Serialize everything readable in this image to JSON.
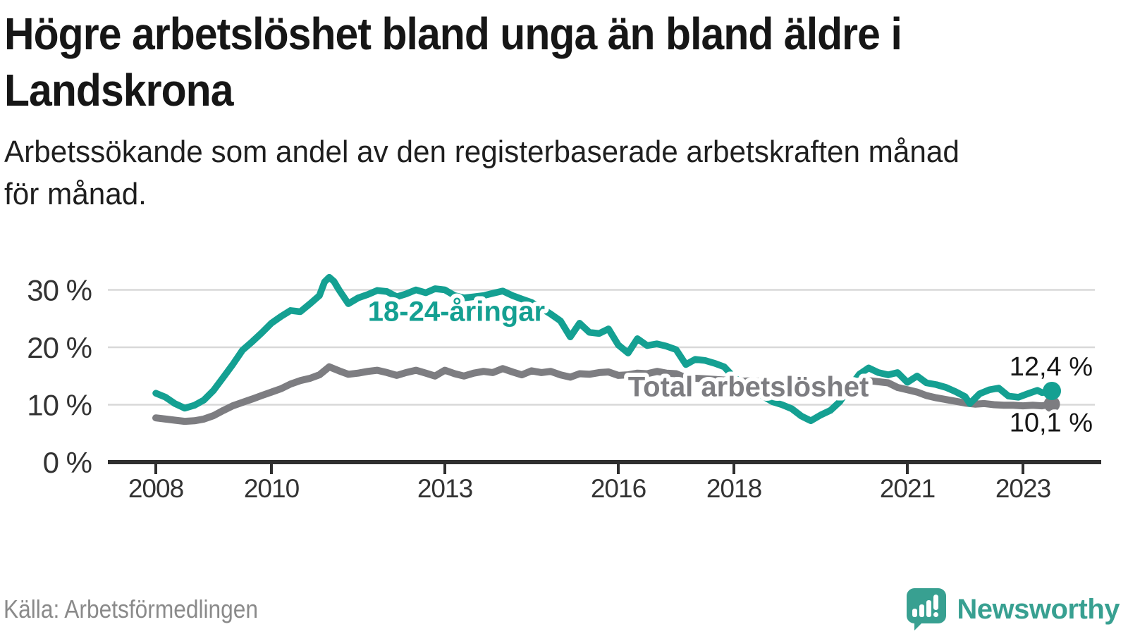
{
  "header": {
    "title_lines": [
      "Högre arbetslöshet bland unga än bland äldre i",
      "Landskrona"
    ],
    "subtitle_lines": [
      "Arbetssökande som andel av den registerbaserade arbetskraften månad",
      "för månad."
    ]
  },
  "footer": {
    "source": "Källa: Arbetsförmedlingen",
    "brand_name": "Newsworthy"
  },
  "colors": {
    "youth_line": "#14a092",
    "total_line": "#7d7d81",
    "grid": "#d8d8d8",
    "axis": "#2f2f2f",
    "value_label": "#161616",
    "brand_teal": "#38a091"
  },
  "chart_data": {
    "type": "line",
    "title": "Högre arbetslöshet bland unga än bland äldre i Landskrona",
    "subtitle": "Arbetssökande som andel av den registerbaserade arbetskraften månad för månad.",
    "source": "Källa: Arbetsförmedlingen",
    "grid": "horizontal",
    "ylim": [
      0,
      33.5
    ],
    "xlim": [
      2007.2,
      2024.2
    ],
    "y_ticks": [
      {
        "value": 0,
        "label": "0 %"
      },
      {
        "value": 10,
        "label": "10 %"
      },
      {
        "value": 20,
        "label": "20 %"
      },
      {
        "value": 30,
        "label": "30 %"
      }
    ],
    "x_ticks": [
      {
        "value": 2008,
        "label": "2008"
      },
      {
        "value": 2010,
        "label": "2010"
      },
      {
        "value": 2013,
        "label": "2013"
      },
      {
        "value": 2016,
        "label": "2016"
      },
      {
        "value": 2018,
        "label": "2018"
      },
      {
        "value": 2021,
        "label": "2021"
      },
      {
        "value": 2023,
        "label": "2023"
      }
    ],
    "series": [
      {
        "name": "Total arbetslöshet",
        "color": "#7d7d81",
        "line_width": 10,
        "end_label": "10,1 %",
        "end_value": 10.1,
        "end_dot_radius": 11.5,
        "label_anchor": {
          "x": 2018.25,
          "y": 13.2
        },
        "end_label_offset": {
          "dx": 58,
          "dy": 39
        },
        "x": [
          2008.0,
          2008.17,
          2008.33,
          2008.5,
          2008.67,
          2008.83,
          2009.0,
          2009.17,
          2009.33,
          2009.5,
          2009.67,
          2009.83,
          2010.0,
          2010.17,
          2010.33,
          2010.5,
          2010.67,
          2010.83,
          2011.0,
          2011.17,
          2011.33,
          2011.5,
          2011.67,
          2011.83,
          2012.0,
          2012.17,
          2012.33,
          2012.5,
          2012.67,
          2012.83,
          2013.0,
          2013.17,
          2013.33,
          2013.5,
          2013.67,
          2013.83,
          2014.0,
          2014.17,
          2014.33,
          2014.5,
          2014.67,
          2014.83,
          2015.0,
          2015.17,
          2015.33,
          2015.5,
          2015.67,
          2015.83,
          2016.0,
          2016.17,
          2016.33,
          2016.5,
          2016.67,
          2016.83,
          2017.0,
          2017.17,
          2017.33,
          2017.5,
          2017.67,
          2017.83,
          2018.0,
          2018.17,
          2018.33,
          2018.5,
          2018.67,
          2018.83,
          2019.0,
          2019.17,
          2019.33,
          2019.5,
          2019.67,
          2019.83,
          2020.0,
          2020.17,
          2020.33,
          2020.5,
          2020.67,
          2020.83,
          2021.0,
          2021.17,
          2021.33,
          2021.5,
          2021.67,
          2021.83,
          2022.0,
          2022.17,
          2022.33,
          2022.5,
          2022.67,
          2022.83,
          2023.0,
          2023.17,
          2023.33,
          2023.5
        ],
        "values": [
          7.7,
          7.5,
          7.3,
          7.1,
          7.2,
          7.5,
          8.1,
          9.0,
          9.8,
          10.4,
          11.0,
          11.6,
          12.2,
          12.8,
          13.6,
          14.2,
          14.6,
          15.2,
          16.6,
          15.9,
          15.3,
          15.5,
          15.8,
          16.0,
          15.6,
          15.1,
          15.6,
          16.0,
          15.5,
          15.0,
          16.0,
          15.4,
          15.0,
          15.5,
          15.8,
          15.6,
          16.3,
          15.7,
          15.2,
          15.9,
          15.6,
          15.8,
          15.2,
          14.8,
          15.4,
          15.3,
          15.6,
          15.7,
          15.1,
          15.2,
          15.5,
          15.4,
          15.8,
          15.5,
          15.4,
          14.7,
          14.6,
          14.5,
          14.4,
          14.3,
          14.2,
          14.1,
          14.2,
          14.0,
          13.9,
          13.8,
          13.6,
          13.4,
          13.2,
          13.1,
          13.2,
          13.4,
          13.6,
          14.0,
          14.2,
          14.0,
          13.8,
          13.0,
          12.6,
          12.2,
          11.6,
          11.2,
          10.9,
          10.6,
          10.3,
          10.1,
          10.2,
          10.0,
          9.9,
          9.9,
          9.8,
          9.9,
          9.8,
          10.1
        ]
      },
      {
        "name": "18-24-åringar",
        "color": "#14a092",
        "line_width": 9.5,
        "end_label": "12,4 %",
        "end_value": 12.4,
        "end_dot_radius": 13,
        "label_anchor": {
          "x": 2013.2,
          "y": 26.3
        },
        "end_label_offset": {
          "dx": 58,
          "dy": -22
        },
        "x": [
          2008.0,
          2008.17,
          2008.33,
          2008.5,
          2008.67,
          2008.83,
          2009.0,
          2009.17,
          2009.33,
          2009.5,
          2009.67,
          2009.83,
          2010.0,
          2010.17,
          2010.33,
          2010.5,
          2010.67,
          2010.83,
          2010.92,
          2011.0,
          2011.08,
          2011.17,
          2011.25,
          2011.33,
          2011.5,
          2011.67,
          2011.83,
          2012.0,
          2012.17,
          2012.33,
          2012.5,
          2012.67,
          2012.83,
          2013.0,
          2013.17,
          2013.33,
          2013.5,
          2013.67,
          2013.83,
          2014.0,
          2014.17,
          2014.33,
          2014.5,
          2014.67,
          2014.83,
          2015.0,
          2015.17,
          2015.33,
          2015.5,
          2015.67,
          2015.83,
          2016.0,
          2016.17,
          2016.33,
          2016.5,
          2016.67,
          2016.83,
          2017.0,
          2017.17,
          2017.33,
          2017.5,
          2017.67,
          2017.83,
          2018.0,
          2018.17,
          2018.33,
          2018.5,
          2018.67,
          2018.83,
          2019.0,
          2019.17,
          2019.33,
          2019.5,
          2019.67,
          2019.83,
          2020.0,
          2020.17,
          2020.33,
          2020.5,
          2020.67,
          2020.83,
          2021.0,
          2021.17,
          2021.33,
          2021.5,
          2021.67,
          2021.83,
          2022.0,
          2022.08,
          2022.25,
          2022.42,
          2022.58,
          2022.75,
          2022.92,
          2023.08,
          2023.25,
          2023.33,
          2023.5
        ],
        "values": [
          12.0,
          11.3,
          10.2,
          9.4,
          9.9,
          10.8,
          12.5,
          14.8,
          17.0,
          19.5,
          21.0,
          22.5,
          24.2,
          25.4,
          26.4,
          26.2,
          27.6,
          29.0,
          31.4,
          32.2,
          31.5,
          30.0,
          28.8,
          27.6,
          28.6,
          29.2,
          29.9,
          29.7,
          28.8,
          29.3,
          30.0,
          29.5,
          30.2,
          30.0,
          29.0,
          28.6,
          28.8,
          29.0,
          29.4,
          29.8,
          29.0,
          28.4,
          27.8,
          26.8,
          25.8,
          24.6,
          21.8,
          24.2,
          22.6,
          22.4,
          23.2,
          20.4,
          19.0,
          21.5,
          20.3,
          20.6,
          20.2,
          19.6,
          17.0,
          17.9,
          17.7,
          17.2,
          16.6,
          14.8,
          13.5,
          12.5,
          11.5,
          10.5,
          10.0,
          9.3,
          8.0,
          7.2,
          8.2,
          9.0,
          10.5,
          13.0,
          15.3,
          16.4,
          15.6,
          15.2,
          15.6,
          13.9,
          15.0,
          13.8,
          13.5,
          13.0,
          12.3,
          11.4,
          10.2,
          11.9,
          12.6,
          12.9,
          11.5,
          11.3,
          11.9,
          12.5,
          12.1,
          12.4
        ]
      }
    ]
  }
}
